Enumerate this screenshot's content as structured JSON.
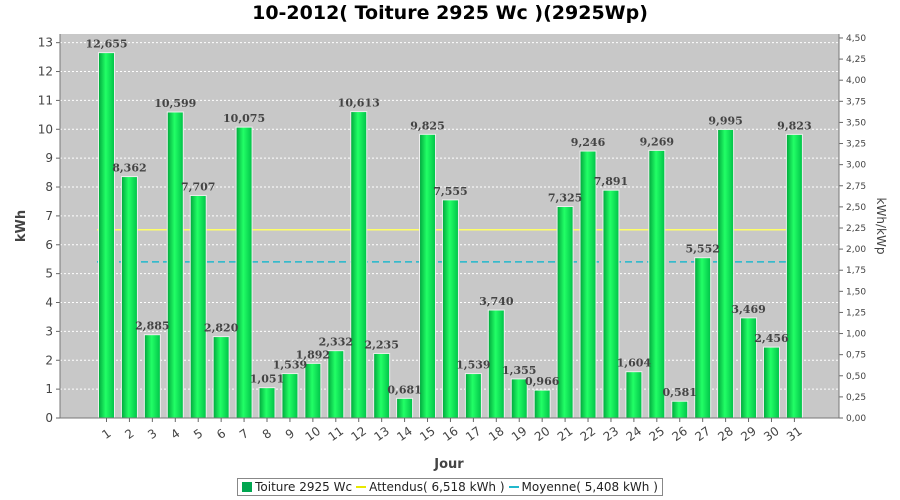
{
  "chart_data": {
    "type": "bar",
    "title": "10-2012( Toiture 2925 Wc )(2925Wp)",
    "xlabel": "Jour",
    "ylabel": "kWh",
    "ylabel_right": "kWh/kWp",
    "ylim": [
      0,
      13.3
    ],
    "ylim_right": [
      0,
      4.547
    ],
    "yticks": [
      "0",
      "1",
      "2",
      "3",
      "4",
      "5",
      "6",
      "7",
      "8",
      "9",
      "10",
      "11",
      "12",
      "13"
    ],
    "yticks_right": [
      "0,00",
      "0,25",
      "0,50",
      "0,75",
      "1,00",
      "1,25",
      "1,50",
      "1,75",
      "2,00",
      "2,25",
      "2,50",
      "2,75",
      "3,00",
      "3,25",
      "3,50",
      "3,75",
      "4,00",
      "4,25",
      "4,50"
    ],
    "categories": [
      "1",
      "2",
      "3",
      "4",
      "5",
      "6",
      "7",
      "8",
      "9",
      "10",
      "11",
      "12",
      "13",
      "14",
      "15",
      "16",
      "17",
      "18",
      "19",
      "20",
      "21",
      "22",
      "23",
      "24",
      "25",
      "26",
      "27",
      "28",
      "29",
      "30",
      "31"
    ],
    "series": [
      {
        "name": "Toiture 2925 Wc",
        "values": [
          12.655,
          8.362,
          2.885,
          10.599,
          7.707,
          2.82,
          10.075,
          1.051,
          1.539,
          1.892,
          2.332,
          10.613,
          2.235,
          0.681,
          9.825,
          7.555,
          1.539,
          3.74,
          1.355,
          0.966,
          7.325,
          9.246,
          7.891,
          1.604,
          9.269,
          0.581,
          5.552,
          9.995,
          3.469,
          2.456,
          9.823
        ],
        "labels": [
          "12,655",
          "8,362",
          "2,885",
          "10,599",
          "7,707",
          "2,820",
          "10,075",
          "1,051",
          "1,539",
          "1,892",
          "2,332",
          "10,613",
          "2,235",
          "0,681",
          "9,825",
          "7,555",
          "1,539",
          "3,740",
          "1,355",
          "0,966",
          "7,325",
          "9,246",
          "7,891",
          "1,604",
          "9,269",
          "0,581",
          "5,552",
          "9,995",
          "3,469",
          "2,456",
          "9,823"
        ],
        "color": "#00e050"
      }
    ],
    "reference_lines": [
      {
        "name": "Attendus",
        "legend": "Attendus( 6,518 kWh )",
        "value": 6.518,
        "color": "#ffff66",
        "style": "solid"
      },
      {
        "name": "Moyenne",
        "legend": "Moyenne( 5,408 kWh )",
        "value": 5.408,
        "color": "#22b8cc",
        "style": "dashed"
      }
    ],
    "legend": [
      "Toiture 2925 Wc",
      "Attendus( 6,518 kWh )",
      "Moyenne( 5,408 kWh )"
    ],
    "legend_position": "bottom",
    "grid": true,
    "colors": {
      "plot_background": "#c8c8c8",
      "grid": "#ffffff",
      "bar": "#00e050",
      "bar_edge": "#ffffff"
    }
  }
}
